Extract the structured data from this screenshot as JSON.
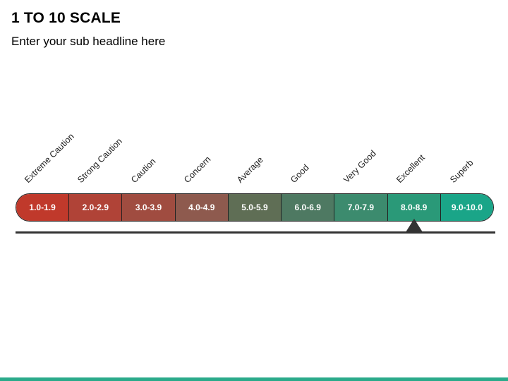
{
  "title": "1 TO 10 SCALE",
  "subtitle": "Enter your sub headline here",
  "scale": {
    "segments": [
      {
        "range": "1.0-1.9",
        "label": "Extreme Caution",
        "color": "#C0392B"
      },
      {
        "range": "2.0-2.9",
        "label": "Strong Caution",
        "color": "#B04337"
      },
      {
        "range": "3.0-3.9",
        "label": "Caution",
        "color": "#A04C40"
      },
      {
        "range": "4.0-4.9",
        "label": "Concern",
        "color": "#8E5A4E"
      },
      {
        "range": "5.0-5.9",
        "label": "Average",
        "color": "#5F6E55"
      },
      {
        "range": "6.0-6.9",
        "label": "Good",
        "color": "#4E7962"
      },
      {
        "range": "7.0-7.9",
        "label": "Very Good",
        "color": "#3C8B6E"
      },
      {
        "range": "8.0-8.9",
        "label": "Excellent",
        "color": "#2A9978"
      },
      {
        "range": "9.0-10.0",
        "label": "Superb",
        "color": "#1AA588"
      }
    ],
    "selected_index": 7
  },
  "colors": {
    "accent": "#2AAA8A",
    "outline": "#222222",
    "baseline": "#333333"
  }
}
